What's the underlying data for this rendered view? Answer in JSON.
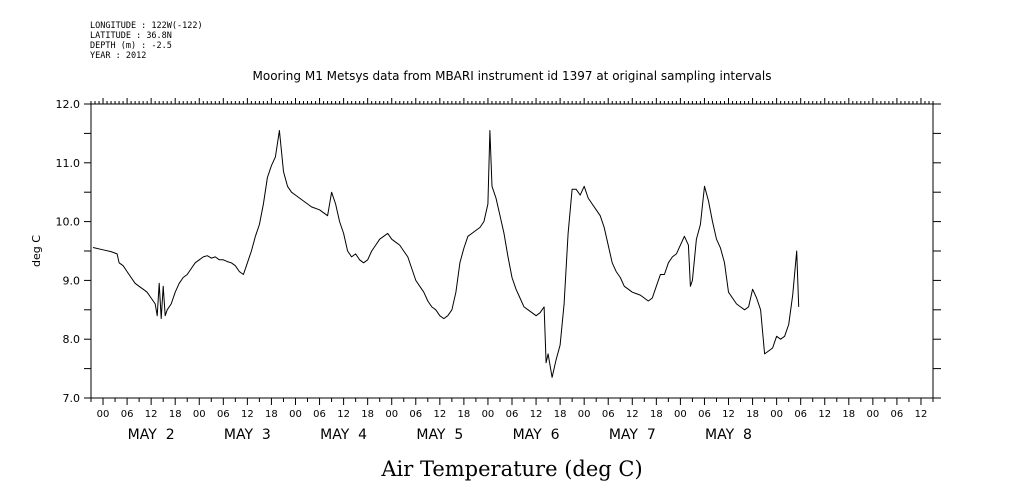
{
  "metadata": [
    {
      "key": "LONGITUDE",
      "value": "122W(-122)"
    },
    {
      "key": "LATITUDE",
      "value": "36.8N"
    },
    {
      "key": "DEPTH (m)",
      "value": "-2.5"
    },
    {
      "key": "YEAR",
      "value": "2012"
    }
  ],
  "chart_data": {
    "type": "line",
    "title": "Mooring M1 Metsys data from MBARI instrument id 1397 at original sampling intervals",
    "xlabel": "Air Temperature (deg C)",
    "ylabel": "deg C",
    "ylim": [
      7.0,
      12.0
    ],
    "yticks": [
      "7.0",
      "8.0",
      "9.0",
      "10.0",
      "11.0",
      "12.0"
    ],
    "xlim_hours": [
      -3,
      207
    ],
    "hour_tick_labels": [
      "00",
      "06",
      "12",
      "18"
    ],
    "day_labels": [
      "MAY  2",
      "MAY  3",
      "MAY  4",
      "MAY  5",
      "MAY  6",
      "MAY  7",
      "MAY  8"
    ],
    "x_unit": "hours since 2012-05-02 00:00",
    "series": [
      {
        "name": "Air Temperature",
        "points": [
          [
            -2.5,
            9.56
          ],
          [
            0,
            9.52
          ],
          [
            2,
            9.49
          ],
          [
            3.5,
            9.45
          ],
          [
            4,
            9.3
          ],
          [
            5,
            9.25
          ],
          [
            6,
            9.15
          ],
          [
            7,
            9.05
          ],
          [
            8,
            8.95
          ],
          [
            9,
            8.9
          ],
          [
            10,
            8.85
          ],
          [
            11,
            8.8
          ],
          [
            12,
            8.7
          ],
          [
            13,
            8.6
          ],
          [
            13.5,
            8.4
          ],
          [
            14,
            8.95
          ],
          [
            14.5,
            8.35
          ],
          [
            15,
            8.9
          ],
          [
            15.5,
            8.4
          ],
          [
            16,
            8.5
          ],
          [
            17,
            8.6
          ],
          [
            18,
            8.8
          ],
          [
            19,
            8.95
          ],
          [
            20,
            9.05
          ],
          [
            21,
            9.1
          ],
          [
            22,
            9.2
          ],
          [
            23,
            9.3
          ],
          [
            24,
            9.35
          ],
          [
            25,
            9.4
          ],
          [
            26,
            9.42
          ],
          [
            27,
            9.38
          ],
          [
            28,
            9.4
          ],
          [
            29,
            9.35
          ],
          [
            30,
            9.35
          ],
          [
            31,
            9.32
          ],
          [
            32,
            9.3
          ],
          [
            33,
            9.25
          ],
          [
            34,
            9.15
          ],
          [
            35,
            9.1
          ],
          [
            36,
            9.3
          ],
          [
            37,
            9.5
          ],
          [
            38,
            9.75
          ],
          [
            39,
            9.95
          ],
          [
            40,
            10.3
          ],
          [
            41,
            10.75
          ],
          [
            42,
            10.95
          ],
          [
            43,
            11.1
          ],
          [
            44,
            11.55
          ],
          [
            45,
            10.85
          ],
          [
            46,
            10.6
          ],
          [
            47,
            10.5
          ],
          [
            48,
            10.45
          ],
          [
            50,
            10.35
          ],
          [
            52,
            10.25
          ],
          [
            54,
            10.2
          ],
          [
            56,
            10.1
          ],
          [
            57,
            10.5
          ],
          [
            58,
            10.3
          ],
          [
            59,
            10.0
          ],
          [
            60,
            9.8
          ],
          [
            61,
            9.5
          ],
          [
            62,
            9.4
          ],
          [
            63,
            9.45
          ],
          [
            64,
            9.35
          ],
          [
            65,
            9.3
          ],
          [
            66,
            9.35
          ],
          [
            67,
            9.5
          ],
          [
            68,
            9.6
          ],
          [
            69,
            9.7
          ],
          [
            70,
            9.75
          ],
          [
            71,
            9.8
          ],
          [
            72,
            9.7
          ],
          [
            73,
            9.65
          ],
          [
            74,
            9.6
          ],
          [
            75,
            9.5
          ],
          [
            76,
            9.4
          ],
          [
            77,
            9.2
          ],
          [
            78,
            9.0
          ],
          [
            79,
            8.9
          ],
          [
            80,
            8.8
          ],
          [
            81,
            8.65
          ],
          [
            82,
            8.55
          ],
          [
            83,
            8.5
          ],
          [
            84,
            8.4
          ],
          [
            85,
            8.35
          ],
          [
            86,
            8.4
          ],
          [
            87,
            8.5
          ],
          [
            88,
            8.8
          ],
          [
            89,
            9.3
          ],
          [
            90,
            9.55
          ],
          [
            91,
            9.75
          ],
          [
            92,
            9.8
          ],
          [
            93,
            9.85
          ],
          [
            94,
            9.9
          ],
          [
            95,
            10.0
          ],
          [
            96,
            10.3
          ],
          [
            96.5,
            11.55
          ],
          [
            97,
            10.6
          ],
          [
            98,
            10.4
          ],
          [
            99,
            10.1
          ],
          [
            100,
            9.8
          ],
          [
            101,
            9.4
          ],
          [
            102,
            9.05
          ],
          [
            103,
            8.85
          ],
          [
            104,
            8.7
          ],
          [
            105,
            8.55
          ],
          [
            106,
            8.5
          ],
          [
            107,
            8.45
          ],
          [
            108,
            8.4
          ],
          [
            109,
            8.45
          ],
          [
            110,
            8.55
          ],
          [
            110.5,
            7.6
          ],
          [
            111,
            7.75
          ],
          [
            112,
            7.35
          ],
          [
            113,
            7.65
          ],
          [
            114,
            7.9
          ],
          [
            115,
            8.6
          ],
          [
            116,
            9.8
          ],
          [
            117,
            10.55
          ],
          [
            118,
            10.55
          ],
          [
            119,
            10.45
          ],
          [
            120,
            10.6
          ],
          [
            121,
            10.4
          ],
          [
            122,
            10.3
          ],
          [
            123,
            10.2
          ],
          [
            124,
            10.1
          ],
          [
            125,
            9.9
          ],
          [
            126,
            9.6
          ],
          [
            127,
            9.3
          ],
          [
            128,
            9.15
          ],
          [
            129,
            9.05
          ],
          [
            130,
            8.9
          ],
          [
            131,
            8.85
          ],
          [
            132,
            8.8
          ],
          [
            134,
            8.75
          ],
          [
            136,
            8.65
          ],
          [
            137,
            8.7
          ],
          [
            138,
            8.9
          ],
          [
            139,
            9.1
          ],
          [
            140,
            9.1
          ],
          [
            141,
            9.3
          ],
          [
            142,
            9.4
          ],
          [
            143,
            9.45
          ],
          [
            144,
            9.6
          ],
          [
            145,
            9.75
          ],
          [
            146,
            9.6
          ],
          [
            146.5,
            8.9
          ],
          [
            147,
            9.0
          ],
          [
            148,
            9.7
          ],
          [
            149,
            9.95
          ],
          [
            150,
            10.6
          ],
          [
            151,
            10.35
          ],
          [
            152,
            10.0
          ],
          [
            153,
            9.7
          ],
          [
            154,
            9.55
          ],
          [
            155,
            9.3
          ],
          [
            156,
            8.8
          ],
          [
            157,
            8.7
          ],
          [
            158,
            8.6
          ],
          [
            159,
            8.55
          ],
          [
            160,
            8.5
          ],
          [
            161,
            8.55
          ],
          [
            162,
            8.85
          ],
          [
            163,
            8.7
          ],
          [
            164,
            8.5
          ],
          [
            165,
            7.75
          ],
          [
            166,
            7.8
          ],
          [
            167,
            7.85
          ],
          [
            168,
            8.05
          ],
          [
            169,
            8.0
          ],
          [
            170,
            8.05
          ],
          [
            171,
            8.25
          ],
          [
            172,
            8.75
          ],
          [
            173,
            9.5
          ],
          [
            173.5,
            8.55
          ]
        ]
      }
    ]
  }
}
